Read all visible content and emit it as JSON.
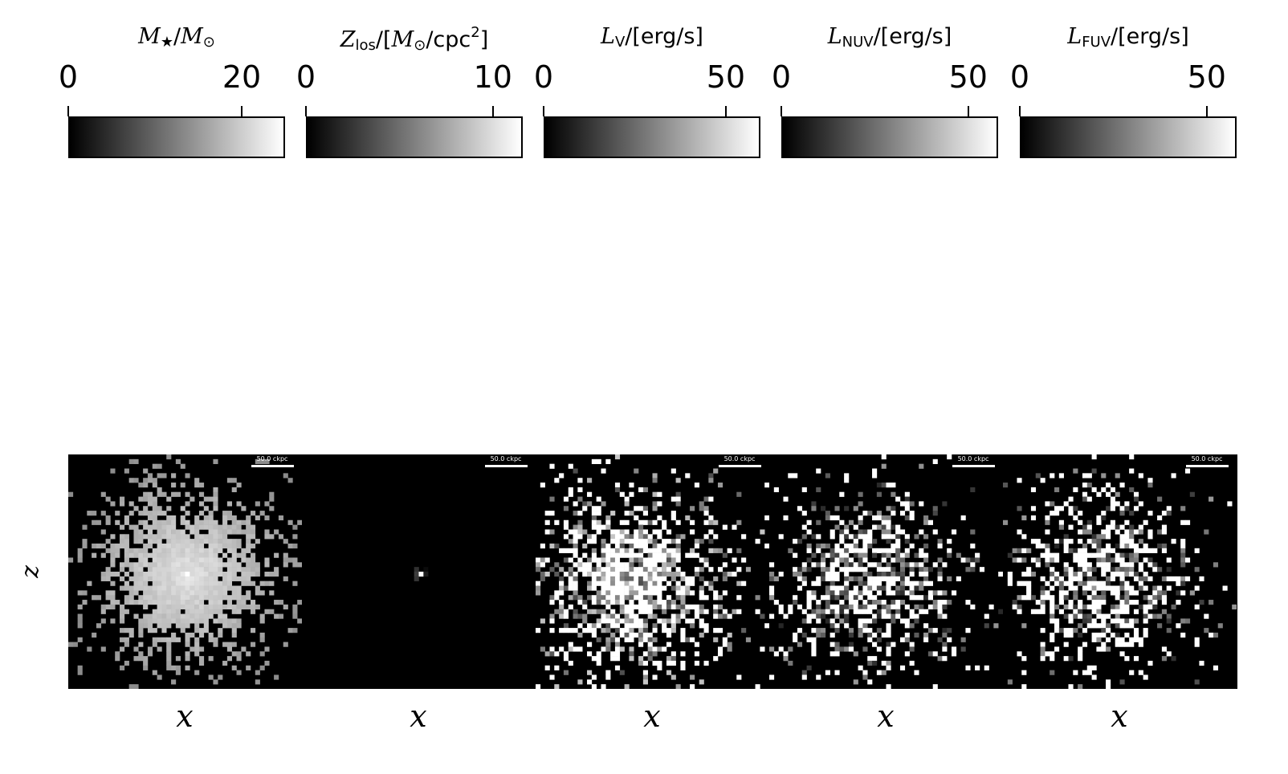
{
  "chart_data": [
    {
      "type": "heatmap",
      "panel": "stellar-mass",
      "colorbar": {
        "label_parts": {
          "sym": "M",
          "sub": "★",
          "rest": "/",
          "sym2": "M",
          "sub2": "⊙",
          "tail": ""
        },
        "range": [
          0,
          25
        ],
        "ticks": [
          {
            "value": 0,
            "label": "0"
          },
          {
            "value": 20,
            "label": "20"
          }
        ]
      },
      "xlabel": "x",
      "ylabel": "z",
      "scalebar": "50.0 ckpc",
      "cmap": "gray"
    },
    {
      "type": "heatmap",
      "panel": "metallicity",
      "colorbar": {
        "label_parts": {
          "sym": "Z",
          "sub": "los",
          "rest": "/[",
          "sym2": "M",
          "sub2": "⊙",
          "tail": "/cpc",
          "sup": "2",
          "end": "]"
        },
        "range": [
          0,
          11.6
        ],
        "ticks": [
          {
            "value": 0,
            "label": "0"
          },
          {
            "value": 10,
            "label": "10"
          }
        ]
      },
      "xlabel": "x",
      "scalebar": "50.0 ckpc",
      "cmap": "gray"
    },
    {
      "type": "heatmap",
      "panel": "luminosity-v",
      "colorbar": {
        "label_parts": {
          "sym": "L",
          "sub": "V",
          "rest": "/[erg/s]"
        },
        "range": [
          0,
          59.5
        ],
        "ticks": [
          {
            "value": 0,
            "label": "0"
          },
          {
            "value": 50,
            "label": "50"
          }
        ]
      },
      "xlabel": "x",
      "scalebar": "50.0 ckpc",
      "cmap": "gray"
    },
    {
      "type": "heatmap",
      "panel": "luminosity-nuv",
      "colorbar": {
        "label_parts": {
          "sym": "L",
          "sub": "NUV",
          "rest": "/[erg/s]"
        },
        "range": [
          0,
          58
        ],
        "ticks": [
          {
            "value": 0,
            "label": "0"
          },
          {
            "value": 50,
            "label": "50"
          }
        ]
      },
      "xlabel": "x",
      "scalebar": "50.0 ckpc",
      "cmap": "gray"
    },
    {
      "type": "heatmap",
      "panel": "luminosity-fuv",
      "colorbar": {
        "label_parts": {
          "sym": "L",
          "sub": "FUV",
          "rest": "/[erg/s]"
        },
        "range": [
          0,
          58
        ],
        "ticks": [
          {
            "value": 0,
            "label": "0"
          },
          {
            "value": 50,
            "label": "50"
          }
        ]
      },
      "xlabel": "x",
      "scalebar": "50.0 ckpc",
      "cmap": "gray"
    }
  ],
  "ylabel": "z",
  "xlabel": "x",
  "scalebar_label": "50.0 ckpc",
  "colors": {
    "background": "#ffffff",
    "panel_bg": "#000000",
    "pixel_max": "#ffffff"
  }
}
